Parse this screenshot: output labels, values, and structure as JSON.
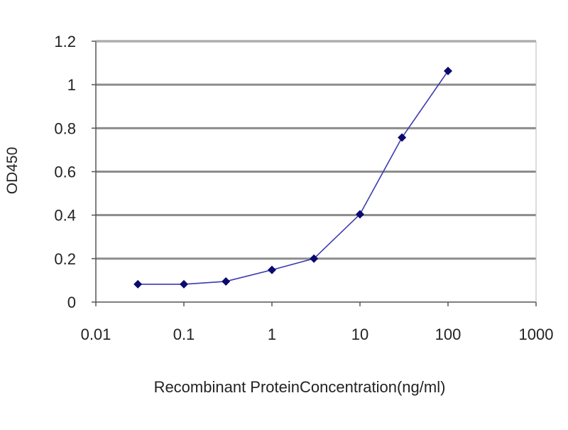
{
  "chart_data": {
    "type": "line",
    "title": "",
    "xlabel": "Recombinant ProteinConcentration(ng/ml)",
    "ylabel": "OD450",
    "x_scale": "log",
    "xlim": [
      0.01,
      1000
    ],
    "ylim": [
      0,
      1.2
    ],
    "x_ticks": [
      "0.01",
      "0.1",
      "1",
      "10",
      "100",
      "1000"
    ],
    "y_ticks": [
      "0",
      "0.2",
      "0.4",
      "0.6",
      "0.8",
      "1",
      "1.2"
    ],
    "grid": "horizontal",
    "legend": "none",
    "series": [
      {
        "x": [
          0.03,
          0.1,
          0.3,
          1,
          3,
          10,
          30,
          100
        ],
        "y": [
          0.082,
          0.082,
          0.095,
          0.148,
          0.2,
          0.404,
          0.757,
          1.063
        ]
      }
    ],
    "colors": {
      "line": "#3a3ab0",
      "marker": "#0a0a6e",
      "grid": "#8c8c8c",
      "axis": "#555555"
    }
  }
}
